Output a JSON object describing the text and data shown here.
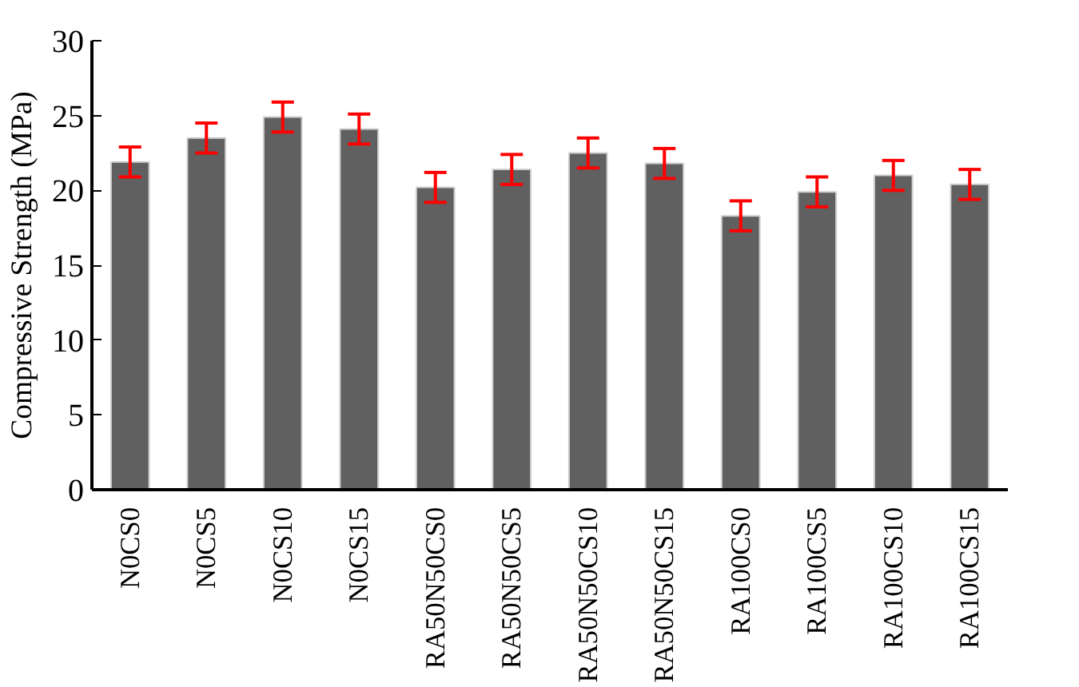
{
  "chart_data": {
    "type": "bar",
    "ylabel": "Compressive Strength (MPa)",
    "categories": [
      "N0CS0",
      "N0CS5",
      "N0CS10",
      "N0CS15",
      "RA50N50CS0",
      "RA50N50CS5",
      "RA50N50CS10",
      "RA50N50CS15",
      "RA100CS0",
      "RA100CS5",
      "RA100CS10",
      "RA100CS15"
    ],
    "values": [
      21.9,
      23.5,
      24.9,
      24.1,
      20.2,
      21.4,
      22.5,
      21.8,
      18.3,
      19.9,
      21.0,
      20.4
    ],
    "errors": [
      1,
      1,
      1,
      1,
      1,
      1,
      1,
      1,
      1,
      1,
      1,
      1
    ],
    "color": "#606060",
    "ylim": [
      0,
      30
    ],
    "yticks": [
      0,
      5,
      10,
      15,
      20,
      25,
      30
    ],
    "grid": false
  }
}
